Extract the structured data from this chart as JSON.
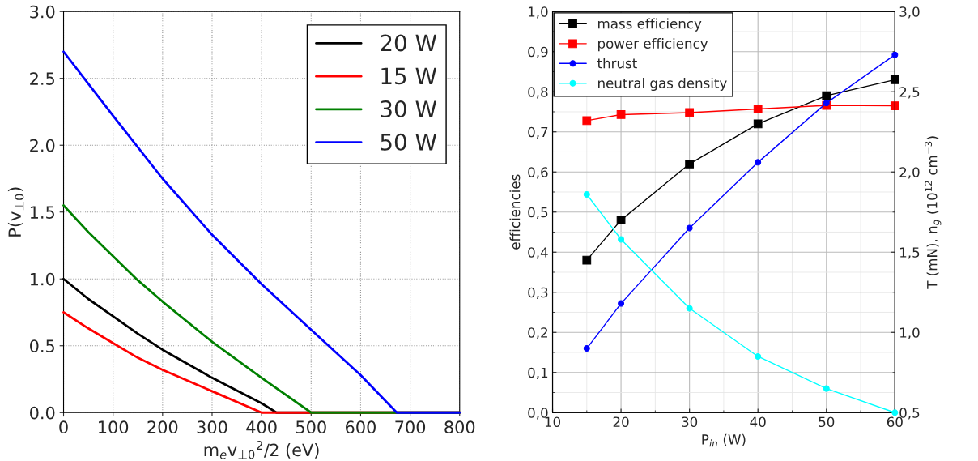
{
  "chart_data": [
    {
      "type": "line",
      "xlabel": "m$_{e}$v$_{⊥0}$$^{2}$/2 (eV)",
      "ylabel": "P(v$_{⊥0}$)",
      "xlim": [
        0,
        800
      ],
      "ylim": [
        0,
        3.0
      ],
      "xticks": [
        0,
        100,
        200,
        300,
        400,
        500,
        600,
        700,
        800
      ],
      "yticks": [
        {
          "value": 0,
          "label": "0.0"
        },
        0.5,
        {
          "value": 1,
          "label": "1.0"
        },
        1.5,
        {
          "value": 2,
          "label": "2.0"
        },
        2.5,
        {
          "value": 3,
          "label": "3.0"
        }
      ],
      "grid": true,
      "legend": "top right",
      "marker": "none",
      "line_style": "solid",
      "series": [
        {
          "name": "20 W",
          "color": "#000000",
          "x": [
            0,
            50,
            100,
            150,
            200,
            300,
            400,
            430,
            800
          ],
          "values": [
            1.0,
            0.85,
            0.72,
            0.59,
            0.47,
            0.26,
            0.07,
            0,
            0
          ]
        },
        {
          "name": "15 W",
          "color": "#ff0000",
          "x": [
            0,
            50,
            100,
            150,
            200,
            300,
            400,
            800
          ],
          "values": [
            0.75,
            0.63,
            0.52,
            0.41,
            0.32,
            0.16,
            0,
            0
          ]
        },
        {
          "name": "30 W",
          "color": "#008000",
          "x": [
            0,
            50,
            100,
            150,
            200,
            300,
            400,
            500,
            800
          ],
          "values": [
            1.55,
            1.35,
            1.17,
            0.99,
            0.83,
            0.53,
            0.26,
            0,
            0
          ]
        },
        {
          "name": "50 W",
          "color": "#0000ff",
          "x": [
            0,
            50,
            100,
            200,
            300,
            400,
            500,
            600,
            673,
            800
          ],
          "values": [
            2.7,
            2.46,
            2.22,
            1.75,
            1.33,
            0.96,
            0.62,
            0.28,
            0,
            0
          ]
        }
      ]
    },
    {
      "type": "line",
      "xlabel": "P$_{in}$ (W)",
      "ylabel": "efficiencies",
      "y2label": "T (mN), n$_{g}$ (10$^{12}$ cm$^{−3}$)",
      "xlim": [
        10,
        60
      ],
      "ylim": [
        0,
        1.0
      ],
      "y2lim": [
        0.5,
        3.0
      ],
      "xticks": [
        10,
        20,
        30,
        40,
        50,
        60
      ],
      "yticks": [
        {
          "value": 0,
          "label": "0,0"
        },
        {
          "value": 0.1,
          "label": "0,1"
        },
        {
          "value": 0.2,
          "label": "0,2"
        },
        {
          "value": 0.3,
          "label": "0,3"
        },
        {
          "value": 0.4,
          "label": "0,4"
        },
        {
          "value": 0.5,
          "label": "0,5"
        },
        {
          "value": 0.6,
          "label": "0,6"
        },
        {
          "value": 0.7,
          "label": "0,7"
        },
        {
          "value": 0.8,
          "label": "0,8"
        },
        {
          "value": 0.9,
          "label": "0,9"
        },
        {
          "value": 1.0,
          "label": "1,0"
        }
      ],
      "y2ticks": [
        {
          "value": 0.5,
          "label": "0,5"
        },
        {
          "value": 1.0,
          "label": "1,0"
        },
        {
          "value": 1.5,
          "label": "1,5"
        },
        {
          "value": 2.0,
          "label": "2,0"
        },
        {
          "value": 2.5,
          "label": "2,5"
        },
        {
          "value": 3.0,
          "label": "3,0"
        }
      ],
      "grid": true,
      "legend": "top left",
      "line_style": "solid",
      "x": [
        15,
        20,
        30,
        40,
        50,
        60
      ],
      "series": [
        {
          "name": "mass efficiency",
          "color": "#000000",
          "marker": "square",
          "values": [
            0.38,
            0.48,
            0.62,
            0.72,
            0.79,
            0.83
          ]
        },
        {
          "name": "power efficiency",
          "color": "#ff0000",
          "marker": "square",
          "values": [
            0.728,
            0.743,
            0.748,
            0.757,
            0.766,
            0.765
          ]
        },
        {
          "name": "thrust",
          "color": "#0000ff",
          "marker": "circle",
          "axis": "y2",
          "values": [
            0.9,
            1.18,
            1.65,
            2.06,
            2.43,
            2.73
          ]
        },
        {
          "name": "neutral gas density",
          "color": "#00ffff",
          "marker": "circle",
          "axis": "y2",
          "values": [
            1.86,
            1.58,
            1.15,
            0.85,
            0.65,
            0.5
          ]
        }
      ]
    }
  ]
}
